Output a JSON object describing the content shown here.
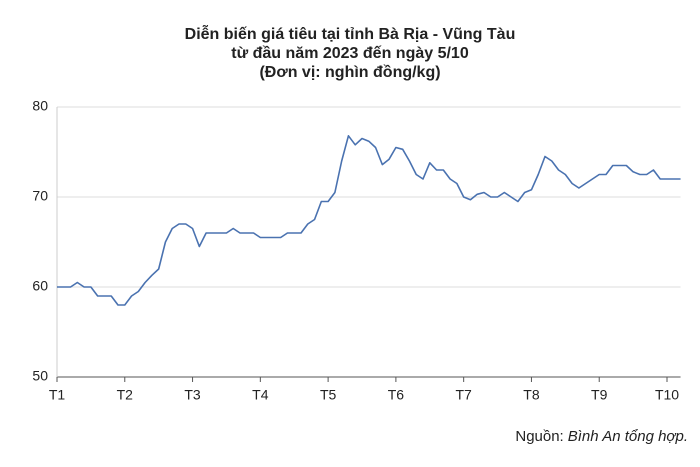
{
  "chart_data": {
    "type": "line",
    "title": [
      "Diễn biến giá tiêu tại tỉnh Bà Rịa - Vũng Tàu",
      "từ đầu năm 2023 đến ngày 5/10",
      "(Đơn vị: nghìn đồng/kg)"
    ],
    "categories": [
      "T1",
      null,
      null,
      null,
      null,
      null,
      null,
      null,
      null,
      null,
      "T2",
      null,
      null,
      null,
      null,
      null,
      null,
      null,
      null,
      null,
      "T3",
      null,
      null,
      null,
      null,
      null,
      null,
      null,
      null,
      null,
      "T4",
      null,
      null,
      null,
      null,
      null,
      null,
      null,
      null,
      null,
      "T5",
      null,
      null,
      null,
      null,
      null,
      null,
      null,
      null,
      null,
      "T6",
      null,
      null,
      null,
      null,
      null,
      null,
      null,
      null,
      null,
      "T7",
      null,
      null,
      null,
      null,
      null,
      null,
      null,
      null,
      null,
      "T8",
      null,
      null,
      null,
      null,
      null,
      null,
      null,
      null,
      null,
      "T9",
      null,
      null,
      null,
      null,
      null,
      null,
      null,
      null,
      null,
      "T10",
      null,
      null
    ],
    "values": [
      60,
      60,
      60,
      60.5,
      60,
      60,
      59,
      59,
      59,
      58,
      58,
      59,
      59.5,
      60.5,
      61.3,
      62,
      65,
      66.5,
      67,
      67,
      66.5,
      64.5,
      66,
      66,
      66,
      66,
      66.5,
      66,
      66,
      66,
      65.5,
      65.5,
      65.5,
      65.5,
      66,
      66,
      66,
      67,
      67.5,
      69.5,
      69.5,
      70.5,
      74,
      76.8,
      75.8,
      76.5,
      76.2,
      75.5,
      73.6,
      74.2,
      75.5,
      75.3,
      74,
      72.5,
      72,
      73.8,
      73,
      73,
      72,
      71.5,
      70,
      69.7,
      70.3,
      70.5,
      70,
      70,
      70.5,
      70,
      69.5,
      70.5,
      70.8,
      72.5,
      74.5,
      74,
      73,
      72.5,
      71.5,
      71,
      71.5,
      72,
      72.5,
      72.5,
      73.5,
      73.5,
      73.5,
      72.8,
      72.5,
      72.5,
      73,
      72,
      72,
      72,
      72
    ],
    "color": "#4a72b0",
    "ylim": [
      50,
      80
    ],
    "yticks": [
      50,
      60,
      70,
      80
    ],
    "grid": true,
    "source": {
      "label": "Nguồn:",
      "text": "Bình An tổng hợp."
    }
  }
}
